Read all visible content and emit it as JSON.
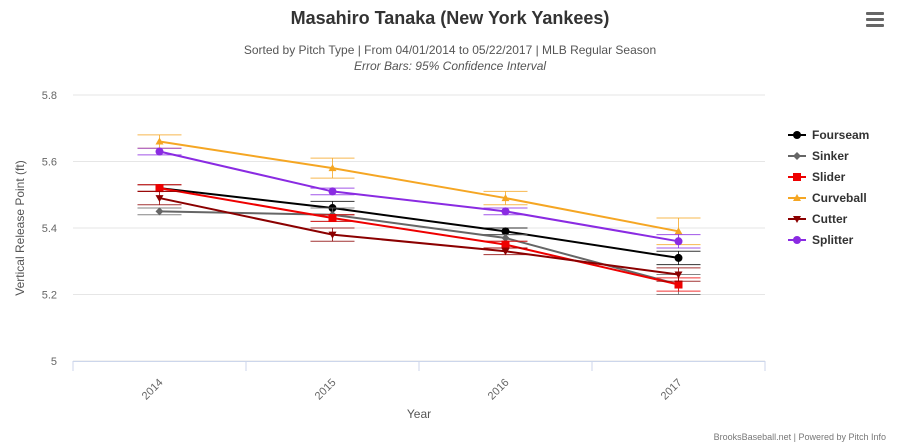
{
  "chart_data": {
    "type": "line",
    "title": "Masahiro Tanaka (New York Yankees)",
    "subtitle": "Sorted by Pitch Type | From 04/01/2014 to 05/22/2017 | MLB Regular Season",
    "subtitle2": "Error Bars: 95% Confidence Interval",
    "xlabel": "Year",
    "ylabel": "Vertical Release Point (ft)",
    "categories": [
      "2014",
      "2015",
      "2016",
      "2017"
    ],
    "ylim": [
      5,
      5.8
    ],
    "yticks": [
      "5",
      "5.2",
      "5.4",
      "5.6",
      "5.8"
    ],
    "legend_position": "right",
    "series": [
      {
        "name": "Fourseam",
        "color": "#000000",
        "marker": "circle",
        "values": [
          5.52,
          5.46,
          5.39,
          5.31
        ],
        "err": [
          0.01,
          0.02,
          0.01,
          0.02
        ]
      },
      {
        "name": "Sinker",
        "color": "#666666",
        "marker": "diamond",
        "values": [
          5.45,
          5.44,
          5.37,
          5.23
        ],
        "err": [
          0.01,
          0.02,
          0.01,
          0.03
        ]
      },
      {
        "name": "Slider",
        "color": "#ee0000",
        "marker": "square",
        "values": [
          5.52,
          5.43,
          5.35,
          5.23
        ],
        "err": [
          0.01,
          0.01,
          0.01,
          0.02
        ]
      },
      {
        "name": "Curveball",
        "color": "#f5a623",
        "marker": "triangle",
        "values": [
          5.66,
          5.58,
          5.49,
          5.39
        ],
        "err": [
          0.02,
          0.03,
          0.02,
          0.04
        ]
      },
      {
        "name": "Cutter",
        "color": "#8b0000",
        "marker": "triangle-down",
        "values": [
          5.49,
          5.38,
          5.33,
          5.26
        ],
        "err": [
          0.02,
          0.02,
          0.01,
          0.02
        ]
      },
      {
        "name": "Splitter",
        "color": "#8a2be2",
        "marker": "circle",
        "values": [
          5.63,
          5.51,
          5.45,
          5.36
        ],
        "err": [
          0.01,
          0.01,
          0.01,
          0.02
        ]
      }
    ]
  },
  "menu_icon": "hamburger-menu-icon",
  "credit": "BrooksBaseball.net | Powered by Pitch Info"
}
